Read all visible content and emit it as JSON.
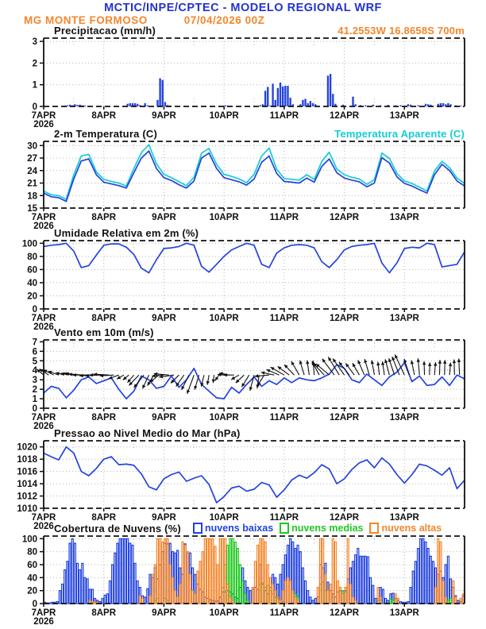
{
  "header": {
    "title": "MCTIC/INPE/CPTEC - MODELO REGIONAL WRF",
    "station": "MG MONTE FORMOSO",
    "run": "07/04/2026 00Z",
    "location": "41.2553W 16.8658S 700m"
  },
  "x_axis": {
    "labels": [
      "7APR",
      "8APR",
      "9APR",
      "10APR",
      "11APR",
      "12APR",
      "13APR"
    ],
    "year": "2026",
    "hours_total": 168
  },
  "colors": {
    "header_blue": "#2233cc",
    "orange": "#f4862c",
    "blue": "#2343de",
    "cyan": "#12cdd4",
    "green": "#1fc81f",
    "grid_gray": "#b5b5b5",
    "black": "#111111"
  },
  "chart_data": [
    {
      "id": "precipitation",
      "title": "Precipitacao (mm/h)",
      "type": "bar",
      "ylim": [
        0,
        3.15
      ],
      "yticks": [
        0,
        1,
        2,
        3
      ],
      "step_hours": 1,
      "series": [
        {
          "name": "precipitacao",
          "color": "#2343de",
          "values": [
            0,
            0,
            0,
            0,
            0,
            0,
            0,
            0,
            0.04,
            0.05,
            0.08,
            0.05,
            0.1,
            0.07,
            0.08,
            0.05,
            0.04,
            0,
            0,
            0,
            0,
            0,
            0,
            0,
            0,
            0,
            0,
            0,
            0,
            0,
            0,
            0,
            0,
            0.12,
            0.15,
            0.15,
            0.15,
            0.12,
            0.06,
            0,
            0.15,
            0.05,
            0,
            0,
            0,
            0.3,
            1.3,
            1.22,
            0.2,
            0.06,
            0.04,
            0,
            0,
            0,
            0,
            0,
            0,
            0,
            0,
            0,
            0,
            0,
            0,
            0,
            0,
            0,
            0,
            0,
            0,
            0,
            0,
            0,
            0.05,
            0.04,
            0,
            0,
            0,
            0,
            0,
            0,
            0,
            0,
            0,
            0,
            0,
            0,
            0.06,
            0.1,
            0.72,
            0.9,
            0.04,
            1.05,
            0.3,
            0.85,
            1.1,
            0.92,
            0.95,
            0.95,
            0.4,
            0.1,
            0,
            0,
            0.1,
            0.3,
            0.35,
            0.15,
            0.25,
            0.15,
            0.1,
            0,
            0,
            0,
            0,
            1.42,
            1.5,
            0.58,
            0.12,
            0,
            0,
            0.08,
            0,
            0,
            0,
            0.45,
            0.1,
            0,
            0.06,
            0,
            0.05,
            0,
            0,
            0.08,
            0,
            0,
            0.05,
            0,
            0,
            0.07,
            0,
            0,
            0.05,
            0,
            0.05,
            0,
            0,
            0.1,
            0.08,
            0,
            0,
            0.05,
            0,
            0,
            0.12,
            0.1,
            0.08,
            0,
            0,
            0.12,
            0.15,
            0.15,
            0.1,
            0.15,
            0.1,
            0,
            0.05,
            0,
            0.04,
            0
          ]
        }
      ]
    },
    {
      "id": "temperature",
      "title": "2-m Temperatura (C)",
      "title_right": "Temperatura Aparente (C)",
      "type": "line",
      "ylim": [
        15,
        31
      ],
      "yticks": [
        15,
        18,
        21,
        24,
        27,
        30
      ],
      "step_hours": 3,
      "series": [
        {
          "name": "Temperatura Aparente (C)",
          "color": "#12cdd4",
          "values": [
            19.1,
            18.2,
            18.0,
            17.1,
            23.0,
            27.5,
            27.9,
            23.7,
            21.9,
            21.4,
            21.0,
            20.3,
            24.5,
            28.3,
            30.2,
            25.6,
            23.1,
            22.3,
            21.3,
            20.4,
            22.4,
            28.2,
            29.3,
            25.5,
            23.1,
            22.6,
            22.0,
            21.1,
            23.1,
            27.5,
            29.4,
            24.3,
            22.1,
            21.9,
            21.7,
            23.0,
            21.9,
            26.2,
            28.4,
            24.4,
            23.0,
            22.4,
            22.0,
            20.7,
            21.8,
            28.2,
            26.9,
            23.3,
            21.5,
            20.9,
            20.0,
            19.1,
            23.9,
            26.2,
            24.7,
            22.2,
            20.9
          ]
        },
        {
          "name": "2-m Temperatura (C)",
          "color": "#2343de",
          "values": [
            18.6,
            17.7,
            17.5,
            16.6,
            22.0,
            26.3,
            26.8,
            23.0,
            21.2,
            20.8,
            20.4,
            19.8,
            23.5,
            27.0,
            28.7,
            24.5,
            22.3,
            21.6,
            20.6,
            19.8,
            21.5,
            27.0,
            28.2,
            24.5,
            22.3,
            21.8,
            21.3,
            20.5,
            22.0,
            26.0,
            27.5,
            23.3,
            21.4,
            21.2,
            21.0,
            22.2,
            21.2,
            25.0,
            26.8,
            23.5,
            22.2,
            21.7,
            21.3,
            20.1,
            21.0,
            27.1,
            25.8,
            22.5,
            20.9,
            20.3,
            19.4,
            18.6,
            23.0,
            25.5,
            24.0,
            21.5,
            20.3
          ]
        }
      ]
    },
    {
      "id": "humidity",
      "title": "Umidade Relativa em 2m (%)",
      "type": "line",
      "ylim": [
        0,
        104
      ],
      "yticks": [
        0,
        20,
        40,
        60,
        80,
        100
      ],
      "step_hours": 3,
      "series": [
        {
          "name": "umidade relativa",
          "color": "#2343de",
          "values": [
            95,
            97,
            98,
            100,
            88,
            63,
            66,
            82,
            97,
            99,
            99,
            94,
            83,
            62,
            55,
            75,
            92,
            93,
            95,
            100,
            97,
            65,
            56,
            68,
            80,
            90,
            95,
            100,
            97,
            68,
            63,
            85,
            93,
            97,
            98,
            97,
            93,
            72,
            63,
            75,
            90,
            95,
            97,
            98,
            100,
            70,
            55,
            70,
            92,
            94,
            93,
            100,
            98,
            64,
            66,
            68,
            87
          ]
        }
      ]
    },
    {
      "id": "wind",
      "title": "Vento em 10m (m/s)",
      "type": "wind",
      "ylim": [
        0,
        7.2
      ],
      "yticks": [
        0,
        1,
        2,
        3,
        4,
        5,
        6,
        7
      ],
      "step_hours": 3,
      "arrow_baseline": 3.5,
      "arrow_angles_deg": [
        140,
        150,
        160,
        165,
        170,
        175,
        180,
        185,
        180,
        175,
        200,
        215,
        230,
        225,
        245,
        235,
        185,
        170,
        225,
        240,
        250,
        255,
        260,
        265,
        175,
        165,
        210,
        230,
        255,
        265,
        185,
        160,
        150,
        140,
        120,
        100,
        95,
        130,
        140,
        120,
        125,
        130,
        120,
        110,
        100,
        95,
        105,
        110,
        115,
        105,
        95,
        90,
        85,
        90,
        85,
        95,
        88
      ],
      "series": [
        {
          "name": "velocidade do vento",
          "color": "#2343de",
          "values": [
            1.6,
            2.3,
            2.1,
            1.1,
            1.9,
            3.0,
            3.3,
            2.6,
            2.9,
            3.2,
            2.0,
            1.0,
            1.8,
            3.4,
            3.0,
            2.1,
            2.3,
            3.4,
            2.2,
            3.0,
            4.2,
            2.5,
            1.8,
            1.1,
            1.0,
            2.2,
            1.6,
            2.5,
            3.3,
            2.3,
            2.9,
            2.5,
            3.2,
            2.7,
            3.2,
            3.0,
            2.9,
            3.2,
            3.6,
            4.6,
            4.2,
            3.0,
            2.7,
            3.6,
            3.0,
            2.4,
            3.3,
            3.8,
            4.8,
            2.8,
            3.4,
            2.4,
            2.5,
            3.3,
            2.4,
            3.5,
            3.1
          ]
        }
      ]
    },
    {
      "id": "pressure",
      "title": "Pressao ao Nivel Medio do Mar (hPa)",
      "type": "line",
      "ylim": [
        1010,
        1021
      ],
      "yticks": [
        1010,
        1012,
        1014,
        1016,
        1018,
        1020
      ],
      "step_hours": 3,
      "series": [
        {
          "name": "pressao ao nivel medio do mar",
          "color": "#2343de",
          "values": [
            1019.0,
            1018.4,
            1017.9,
            1020.0,
            1019.0,
            1016.0,
            1015.3,
            1016.5,
            1018.0,
            1018.4,
            1017.1,
            1017.2,
            1017.0,
            1015.6,
            1013.5,
            1013.0,
            1014.8,
            1015.5,
            1015.9,
            1014.4,
            1014.9,
            1015.3,
            1013.9,
            1010.9,
            1011.9,
            1013.3,
            1013.6,
            1012.8,
            1013.1,
            1014.2,
            1013.8,
            1011.8,
            1013.0,
            1014.6,
            1015.4,
            1014.9,
            1015.8,
            1017.1,
            1016.4,
            1014.0,
            1014.8,
            1016.3,
            1017.4,
            1017.9,
            1016.6,
            1018.2,
            1017.2,
            1015.5,
            1014.1,
            1015.5,
            1017.2,
            1016.9,
            1016.2,
            1015.4,
            1016.6,
            1013.2,
            1014.6
          ]
        }
      ]
    },
    {
      "id": "clouds",
      "title": "Cobertura de Nuvens (%)",
      "type": "hollow_bar",
      "ylim": [
        0,
        104
      ],
      "yticks": [
        0,
        20,
        40,
        60,
        80,
        100
      ],
      "step_hours": 1,
      "series": [
        {
          "name": "nuvens baixas",
          "color": "#2343de",
          "values": [
            2,
            1,
            1,
            2,
            2,
            3,
            20,
            30,
            52,
            65,
            93,
            100,
            93,
            62,
            52,
            62,
            40,
            38,
            22,
            22,
            8,
            5,
            3,
            8,
            13,
            15,
            35,
            60,
            78,
            93,
            100,
            100,
            100,
            100,
            93,
            90,
            62,
            35,
            25,
            12,
            10,
            23,
            45,
            40,
            55,
            38,
            60,
            80,
            93,
            92,
            93,
            80,
            78,
            82,
            55,
            45,
            92,
            80,
            78,
            55,
            45,
            30,
            22,
            18,
            10,
            8,
            6,
            5,
            4,
            4,
            10,
            18,
            18,
            20,
            18,
            15,
            10,
            8,
            25,
            55,
            35,
            25,
            20,
            22,
            25,
            22,
            60,
            30,
            20,
            15,
            25,
            45,
            40,
            30,
            45,
            60,
            75,
            90,
            100,
            95,
            85,
            90,
            80,
            55,
            35,
            20,
            10,
            5,
            8,
            10,
            60,
            55,
            62,
            33,
            20,
            15,
            10,
            18,
            20,
            20,
            20,
            38,
            55,
            65,
            75,
            85,
            73,
            73,
            73,
            72,
            40,
            28,
            8,
            5,
            25,
            22,
            8,
            5,
            15,
            16,
            8,
            5,
            3,
            2,
            2,
            3,
            25,
            50,
            65,
            85,
            100,
            100,
            95,
            85,
            73,
            65,
            55,
            45,
            50,
            40,
            60,
            73,
            38,
            25,
            12,
            5,
            3,
            12
          ]
        },
        {
          "name": "nuvens medias",
          "color": "#1fc81f",
          "values": [
            0,
            0,
            0,
            0,
            0,
            0,
            0,
            0,
            0,
            0,
            0,
            0,
            0,
            0,
            0,
            0,
            0,
            0,
            0,
            0,
            0,
            0,
            0,
            0,
            0,
            0,
            0,
            0,
            0,
            0,
            0,
            0,
            0,
            0,
            0,
            0,
            0,
            0,
            0,
            0,
            0,
            0,
            0,
            0,
            5,
            8,
            0,
            0,
            8,
            5,
            0,
            0,
            0,
            0,
            0,
            0,
            0,
            0,
            0,
            0,
            0,
            0,
            0,
            0,
            0,
            0,
            0,
            0,
            0,
            0,
            0,
            25,
            60,
            90,
            100,
            100,
            95,
            85,
            60,
            35,
            15,
            5,
            0,
            0,
            0,
            0,
            30,
            32,
            25,
            28,
            20,
            15,
            10,
            8,
            5,
            3,
            0,
            0,
            0,
            0,
            15,
            10,
            0,
            0,
            0,
            0,
            0,
            0,
            0,
            0,
            30,
            33,
            20,
            0,
            0,
            10,
            0,
            0,
            0,
            20,
            18,
            0,
            0,
            0,
            0,
            0,
            0,
            0,
            0,
            0,
            0,
            0,
            0,
            8,
            5,
            0,
            0,
            0,
            7,
            5,
            0,
            0,
            0,
            0,
            0,
            0,
            0,
            0,
            0,
            0,
            0,
            0,
            0,
            0,
            0,
            0,
            0,
            0,
            0,
            0,
            0,
            5,
            8,
            0,
            0,
            0,
            0,
            0
          ]
        },
        {
          "name": "nuvens altas",
          "color": "#f4862c",
          "values": [
            0,
            0,
            0,
            0,
            0,
            0,
            0,
            0,
            0,
            0,
            0,
            0,
            0,
            0,
            0,
            0,
            0,
            0,
            5,
            3,
            2,
            2,
            0,
            0,
            0,
            0,
            0,
            0,
            0,
            0,
            0,
            0,
            0,
            0,
            0,
            0,
            0,
            0,
            12,
            8,
            0,
            0,
            12,
            45,
            60,
            100,
            100,
            95,
            100,
            100,
            60,
            40,
            20,
            10,
            30,
            95,
            90,
            80,
            45,
            20,
            15,
            50,
            65,
            80,
            100,
            100,
            100,
            100,
            88,
            60,
            100,
            100,
            100,
            30,
            10,
            5,
            0,
            0,
            0,
            0,
            0,
            0,
            0,
            25,
            65,
            90,
            100,
            100,
            95,
            60,
            40,
            30,
            20,
            10,
            5,
            20,
            35,
            40,
            35,
            20,
            10,
            5,
            0,
            0,
            0,
            0,
            0,
            0,
            0,
            25,
            100,
            100,
            45,
            20,
            30,
            100,
            95,
            35,
            25,
            15,
            25,
            100,
            30,
            10,
            5,
            0,
            0,
            0,
            0,
            0,
            0,
            0,
            0,
            25,
            10,
            0,
            0,
            0,
            0,
            0,
            15,
            8,
            0,
            0,
            0,
            0,
            0,
            0,
            0,
            0,
            0,
            0,
            0,
            0,
            0,
            0,
            25,
            100,
            95,
            35,
            10,
            0,
            0,
            35,
            10,
            0,
            8,
            15
          ]
        }
      ]
    }
  ]
}
